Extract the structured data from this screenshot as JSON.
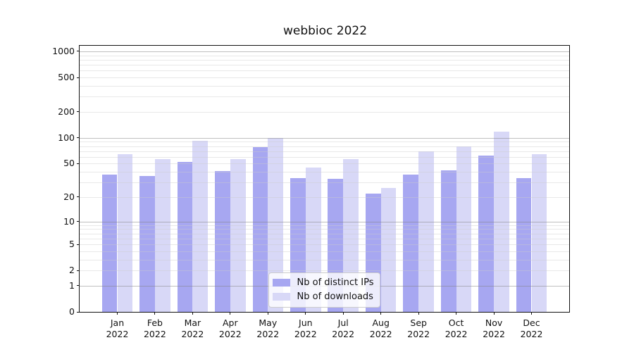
{
  "page": {
    "background": "#ffffff"
  },
  "chart_data": {
    "type": "bar",
    "title": "webbioc 2022",
    "categories": [
      "Jan",
      "Feb",
      "Mar",
      "Apr",
      "May",
      "Jun",
      "Jul",
      "Aug",
      "Sep",
      "Oct",
      "Nov",
      "Dec"
    ],
    "year": "2022",
    "series": [
      {
        "name": "Nb of distinct IPs",
        "color": "#a7a7f1",
        "values": [
          37,
          36,
          52,
          41,
          78,
          34,
          33,
          22,
          37,
          42,
          62,
          34
        ]
      },
      {
        "name": "Nb of downloads",
        "color": "#d8d8f7",
        "values": [
          64,
          56,
          92,
          57,
          100,
          45,
          56,
          26,
          70,
          80,
          118,
          65
        ]
      }
    ],
    "yscale": "log1p",
    "ylim": [
      0,
      1160
    ],
    "yticks": [
      1000,
      500,
      200,
      100,
      50,
      20,
      10,
      5,
      2,
      1,
      0
    ],
    "major_gridlines": [
      1,
      10,
      100,
      1000
    ],
    "minor_gridlines": [
      2,
      3,
      4,
      5,
      6,
      7,
      8,
      9,
      20,
      30,
      40,
      50,
      60,
      70,
      80,
      90,
      200,
      300,
      400,
      500,
      600,
      700,
      800,
      900
    ],
    "grid": true,
    "legend_position": "lower center",
    "layout": {
      "axis_color": "#111111",
      "major_grid_color": "#bdbdbd",
      "minor_grid_color": "#e9e9e9",
      "legend_border_color": "#cccccc"
    }
  }
}
